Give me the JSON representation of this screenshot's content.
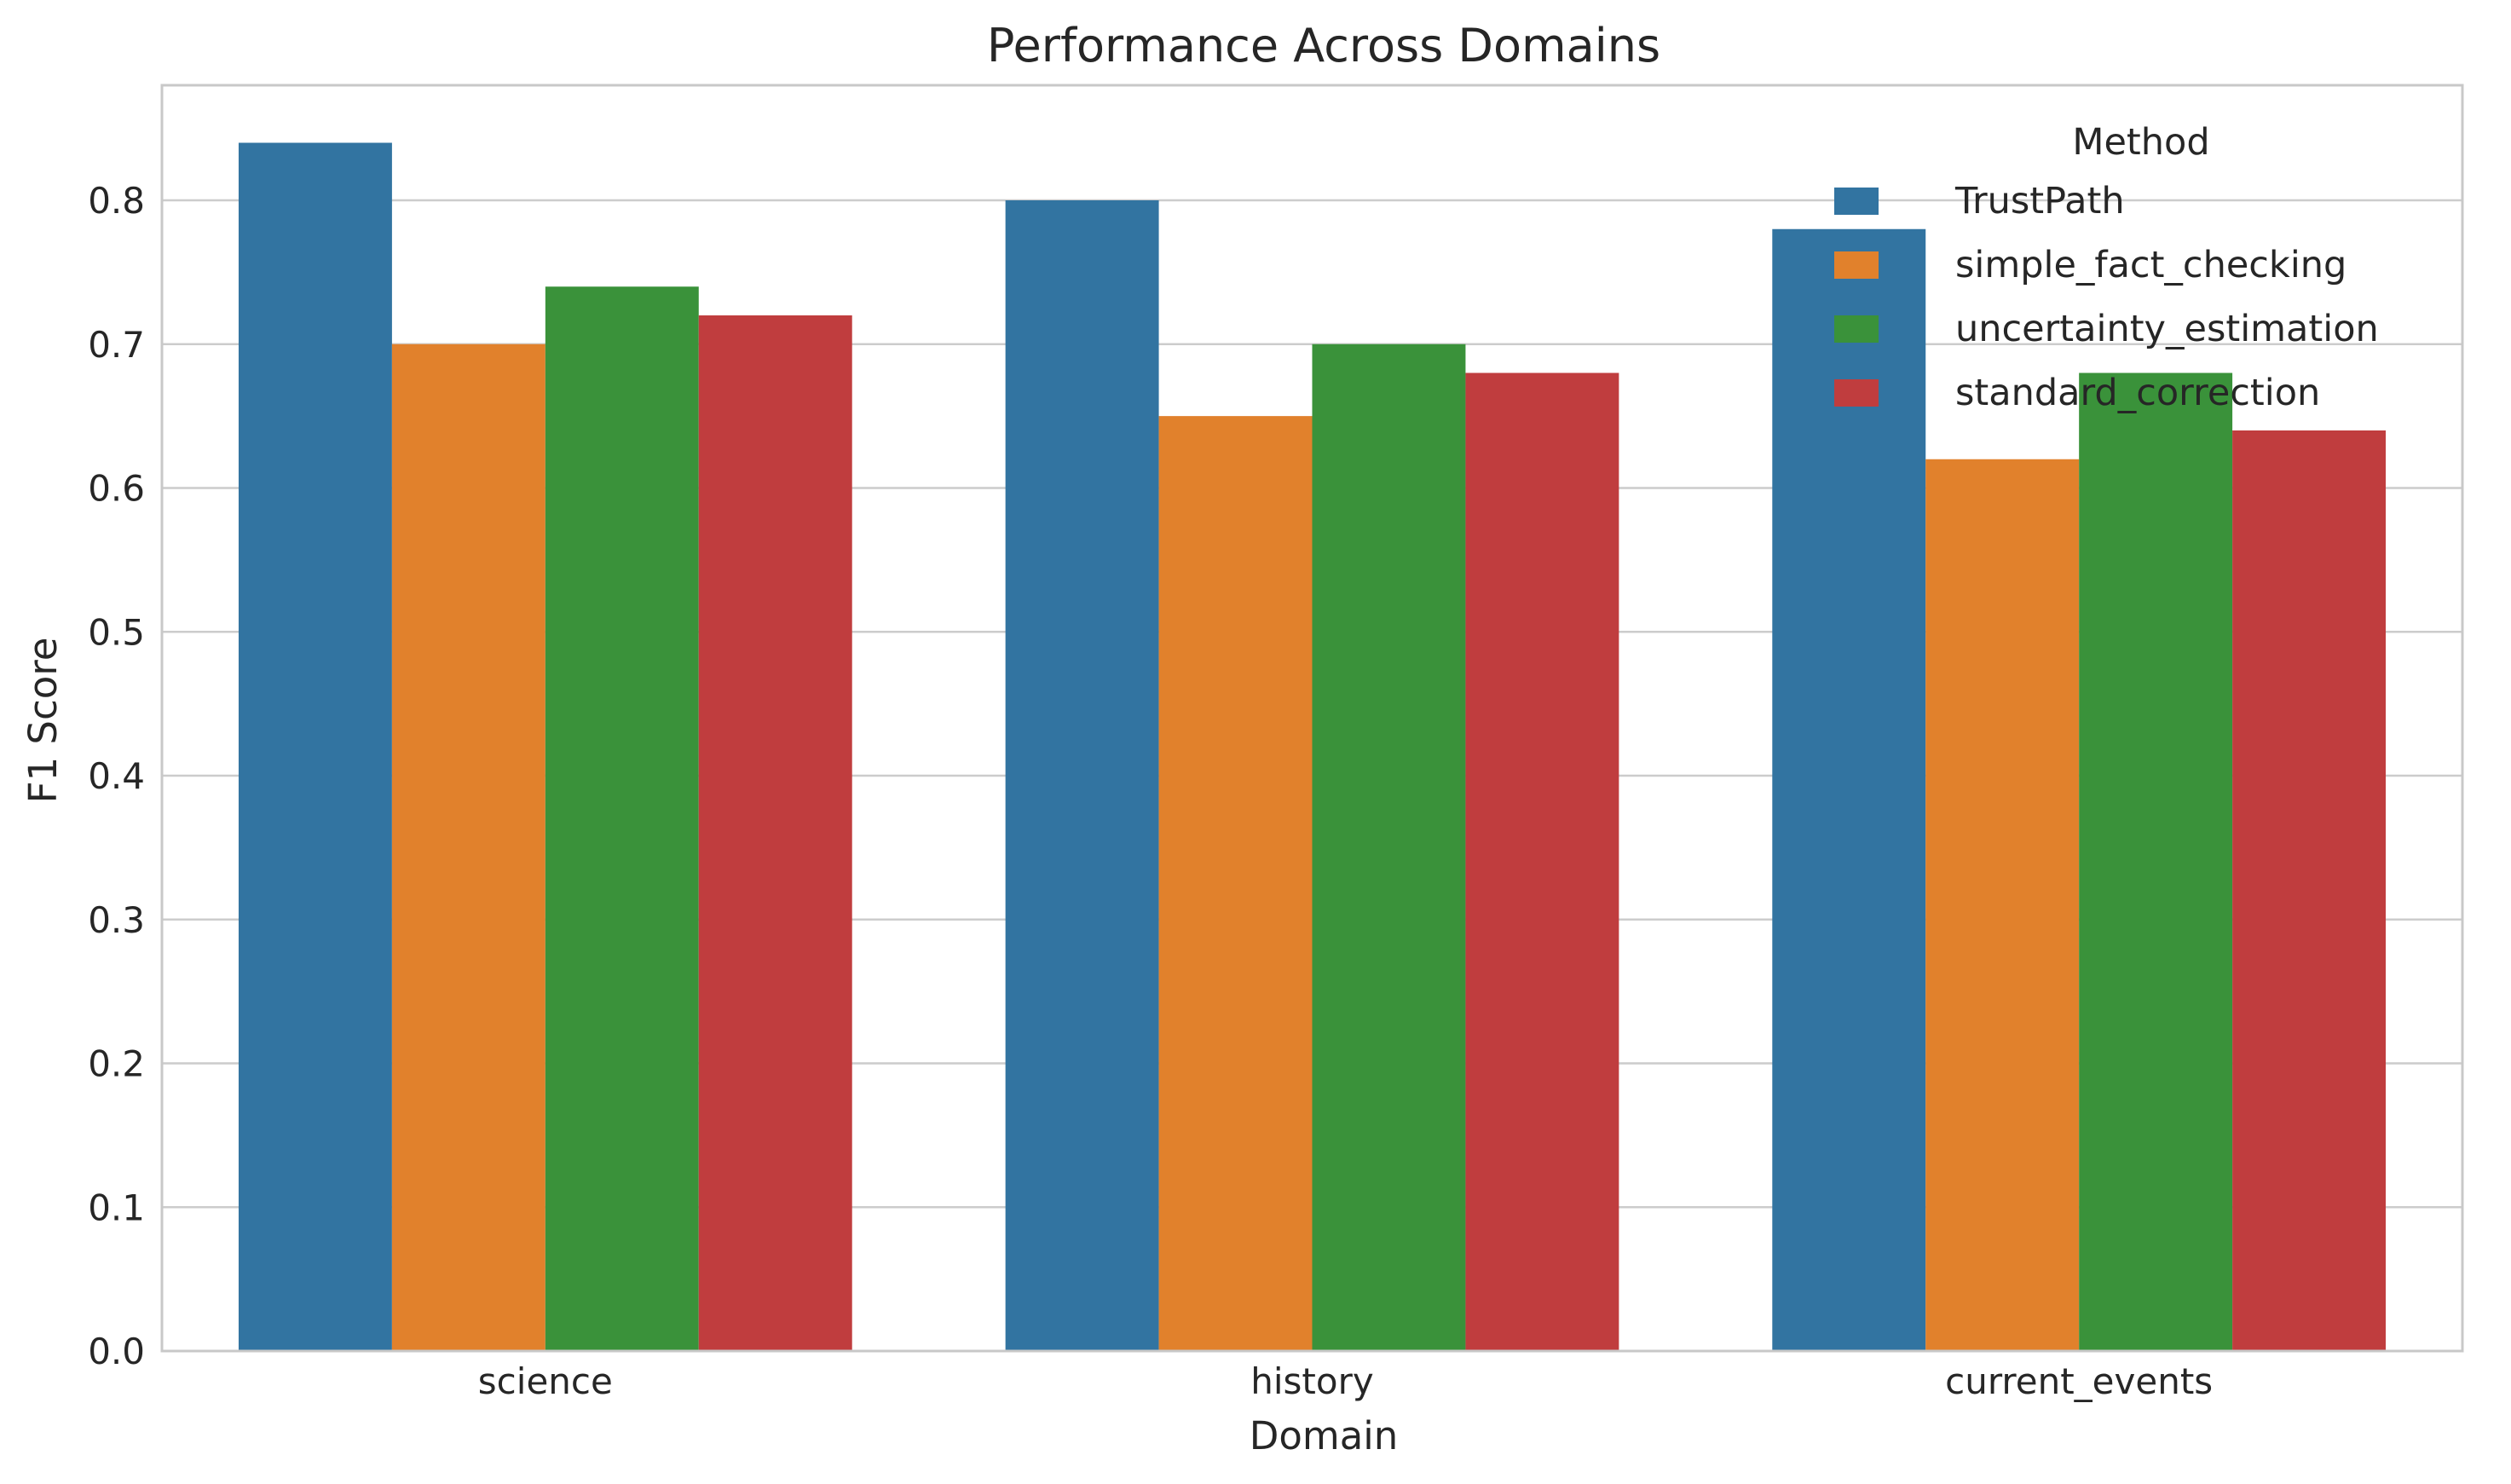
{
  "chart_data": {
    "type": "bar",
    "title": "Performance Across Domains",
    "xlabel": "Domain",
    "ylabel": "F1 Score",
    "categories": [
      "science",
      "history",
      "current_events"
    ],
    "series": [
      {
        "name": "TrustPath",
        "values": [
          0.84,
          0.8,
          0.78
        ],
        "color": "#3274a1"
      },
      {
        "name": "simple_fact_checking",
        "values": [
          0.7,
          0.65,
          0.62
        ],
        "color": "#e1812c"
      },
      {
        "name": "uncertainty_estimation",
        "values": [
          0.74,
          0.7,
          0.68
        ],
        "color": "#3a923a"
      },
      {
        "name": "standard_correction",
        "values": [
          0.72,
          0.68,
          0.64
        ],
        "color": "#c03d3e"
      }
    ],
    "ylim": [
      0,
      0.88
    ],
    "yticks": [
      "0.0",
      "0.1",
      "0.2",
      "0.3",
      "0.4",
      "0.5",
      "0.6",
      "0.7",
      "0.8"
    ],
    "grid": "horizontal",
    "legend": {
      "title": "Method",
      "placement": "top-right"
    }
  }
}
